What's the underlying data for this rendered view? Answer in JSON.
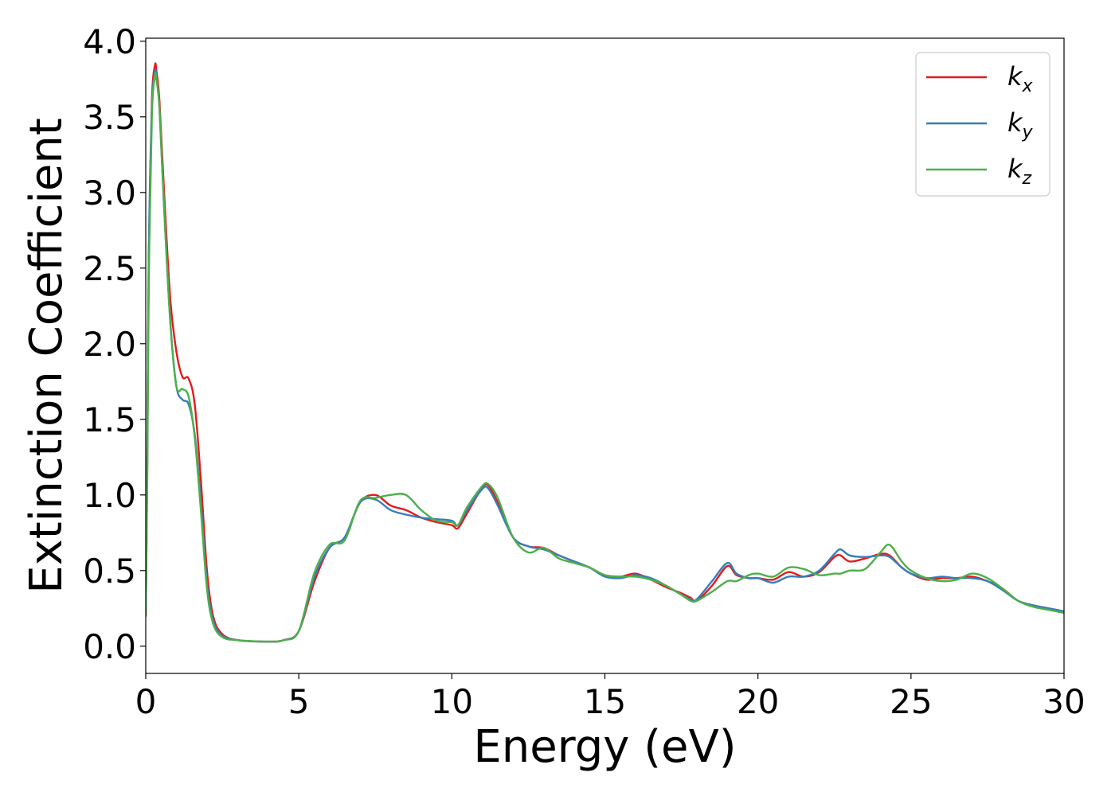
{
  "chart_data": {
    "type": "line",
    "title": "",
    "xlabel": "Energy (eV)",
    "ylabel": "Extinction Coefficient",
    "xlim": [
      0,
      30
    ],
    "ylim": [
      -0.18,
      4.02
    ],
    "xticks": [
      0,
      5,
      10,
      15,
      20,
      25,
      30
    ],
    "xtick_labels": [
      "0",
      "5",
      "10",
      "15",
      "20",
      "25",
      "30"
    ],
    "yticks": [
      0.0,
      0.5,
      1.0,
      1.5,
      2.0,
      2.5,
      3.0,
      3.5,
      4.0
    ],
    "ytick_labels": [
      "0.0",
      "0.5",
      "1.0",
      "1.5",
      "2.0",
      "2.5",
      "3.0",
      "3.5",
      "4.0"
    ],
    "grid": false,
    "legend_position": "top-right",
    "series": [
      {
        "name": "k",
        "subscript": "x",
        "color": "#e41a1c",
        "x": [
          0,
          0.05,
          0.1,
          0.2,
          0.3,
          0.35,
          0.45,
          0.6,
          0.8,
          1.0,
          1.2,
          1.4,
          1.6,
          1.8,
          2.0,
          2.2,
          2.5,
          3.0,
          4.0,
          4.5,
          5.0,
          5.5,
          6.0,
          6.5,
          7.0,
          7.5,
          8.0,
          8.5,
          9.0,
          9.5,
          10.0,
          10.2,
          10.5,
          11.0,
          11.2,
          11.5,
          12.0,
          12.5,
          13.0,
          13.5,
          14.0,
          14.5,
          15.0,
          15.5,
          16.0,
          16.5,
          17.0,
          17.5,
          17.8,
          18.0,
          18.5,
          19.0,
          19.3,
          19.7,
          20.0,
          20.5,
          21.0,
          21.5,
          22.0,
          22.5,
          22.7,
          23.0,
          23.5,
          24.0,
          24.3,
          24.7,
          25.0,
          25.5,
          26.0,
          26.5,
          27.0,
          27.5,
          28.0,
          28.5,
          29.0,
          29.5,
          30.0
        ],
        "y": [
          0.2,
          1.2,
          2.6,
          3.6,
          3.84,
          3.8,
          3.6,
          3.0,
          2.3,
          1.95,
          1.78,
          1.77,
          1.6,
          1.1,
          0.5,
          0.2,
          0.08,
          0.04,
          0.03,
          0.04,
          0.1,
          0.42,
          0.65,
          0.72,
          0.95,
          1.0,
          0.93,
          0.9,
          0.85,
          0.82,
          0.8,
          0.78,
          0.88,
          1.05,
          1.06,
          0.95,
          0.72,
          0.66,
          0.65,
          0.6,
          0.56,
          0.52,
          0.47,
          0.46,
          0.48,
          0.44,
          0.39,
          0.35,
          0.32,
          0.3,
          0.4,
          0.53,
          0.47,
          0.45,
          0.45,
          0.44,
          0.49,
          0.46,
          0.49,
          0.59,
          0.6,
          0.56,
          0.58,
          0.61,
          0.6,
          0.52,
          0.48,
          0.44,
          0.45,
          0.45,
          0.46,
          0.43,
          0.38,
          0.3,
          0.27,
          0.25,
          0.23
        ]
      },
      {
        "name": "k",
        "subscript": "y",
        "color": "#377eb8",
        "x": [
          0,
          0.05,
          0.1,
          0.2,
          0.3,
          0.35,
          0.45,
          0.6,
          0.8,
          1.0,
          1.2,
          1.4,
          1.6,
          1.8,
          2.0,
          2.2,
          2.5,
          3.0,
          4.0,
          4.5,
          5.0,
          5.5,
          6.0,
          6.5,
          7.0,
          7.5,
          8.0,
          8.5,
          9.0,
          9.5,
          10.0,
          10.2,
          10.5,
          11.0,
          11.2,
          11.5,
          12.0,
          12.5,
          13.0,
          13.5,
          14.0,
          14.5,
          15.0,
          15.5,
          16.0,
          16.5,
          17.0,
          17.5,
          17.8,
          18.0,
          18.5,
          19.0,
          19.3,
          19.7,
          20.0,
          20.5,
          21.0,
          21.5,
          22.0,
          22.5,
          22.7,
          23.0,
          23.5,
          24.0,
          24.3,
          24.7,
          25.0,
          25.5,
          26.0,
          26.5,
          27.0,
          27.5,
          28.0,
          28.5,
          29.0,
          29.5,
          30.0
        ],
        "y": [
          0.2,
          1.2,
          2.6,
          3.55,
          3.8,
          3.75,
          3.55,
          2.9,
          2.15,
          1.72,
          1.63,
          1.6,
          1.4,
          0.95,
          0.42,
          0.17,
          0.07,
          0.04,
          0.03,
          0.04,
          0.1,
          0.45,
          0.65,
          0.72,
          0.95,
          0.97,
          0.9,
          0.87,
          0.85,
          0.84,
          0.83,
          0.8,
          0.9,
          1.04,
          1.04,
          0.93,
          0.72,
          0.66,
          0.64,
          0.6,
          0.56,
          0.52,
          0.46,
          0.45,
          0.47,
          0.45,
          0.4,
          0.34,
          0.31,
          0.31,
          0.43,
          0.55,
          0.48,
          0.45,
          0.45,
          0.42,
          0.46,
          0.46,
          0.5,
          0.61,
          0.64,
          0.6,
          0.59,
          0.6,
          0.59,
          0.52,
          0.48,
          0.45,
          0.46,
          0.45,
          0.45,
          0.43,
          0.37,
          0.3,
          0.27,
          0.25,
          0.23
        ]
      },
      {
        "name": "k",
        "subscript": "z",
        "color": "#4daf4a",
        "x": [
          0,
          0.05,
          0.1,
          0.2,
          0.3,
          0.35,
          0.45,
          0.6,
          0.8,
          1.0,
          1.2,
          1.4,
          1.6,
          1.8,
          2.0,
          2.2,
          2.5,
          3.0,
          4.0,
          4.5,
          5.0,
          5.5,
          6.0,
          6.5,
          7.0,
          7.5,
          8.0,
          8.5,
          9.0,
          9.5,
          10.0,
          10.2,
          10.5,
          11.0,
          11.2,
          11.5,
          12.0,
          12.5,
          13.0,
          13.5,
          14.0,
          14.5,
          15.0,
          15.5,
          16.0,
          16.5,
          17.0,
          17.5,
          17.8,
          18.0,
          18.5,
          19.0,
          19.3,
          19.7,
          20.0,
          20.5,
          21.0,
          21.5,
          22.0,
          22.5,
          22.7,
          23.0,
          23.5,
          24.0,
          24.3,
          24.7,
          25.0,
          25.5,
          26.0,
          26.5,
          27.0,
          27.5,
          28.0,
          28.5,
          29.0,
          29.5,
          30.0
        ],
        "y": [
          0.2,
          1.1,
          2.4,
          3.5,
          3.77,
          3.75,
          3.55,
          2.9,
          2.15,
          1.72,
          1.7,
          1.65,
          1.38,
          0.9,
          0.38,
          0.15,
          0.06,
          0.04,
          0.03,
          0.04,
          0.1,
          0.48,
          0.67,
          0.7,
          0.96,
          0.98,
          1.0,
          1.0,
          0.9,
          0.83,
          0.82,
          0.8,
          0.92,
          1.06,
          1.07,
          0.98,
          0.72,
          0.62,
          0.65,
          0.58,
          0.55,
          0.52,
          0.47,
          0.46,
          0.46,
          0.44,
          0.4,
          0.34,
          0.3,
          0.3,
          0.36,
          0.43,
          0.43,
          0.47,
          0.48,
          0.46,
          0.52,
          0.51,
          0.47,
          0.48,
          0.48,
          0.5,
          0.51,
          0.62,
          0.67,
          0.56,
          0.5,
          0.45,
          0.43,
          0.44,
          0.48,
          0.45,
          0.38,
          0.3,
          0.26,
          0.24,
          0.22
        ]
      }
    ]
  }
}
